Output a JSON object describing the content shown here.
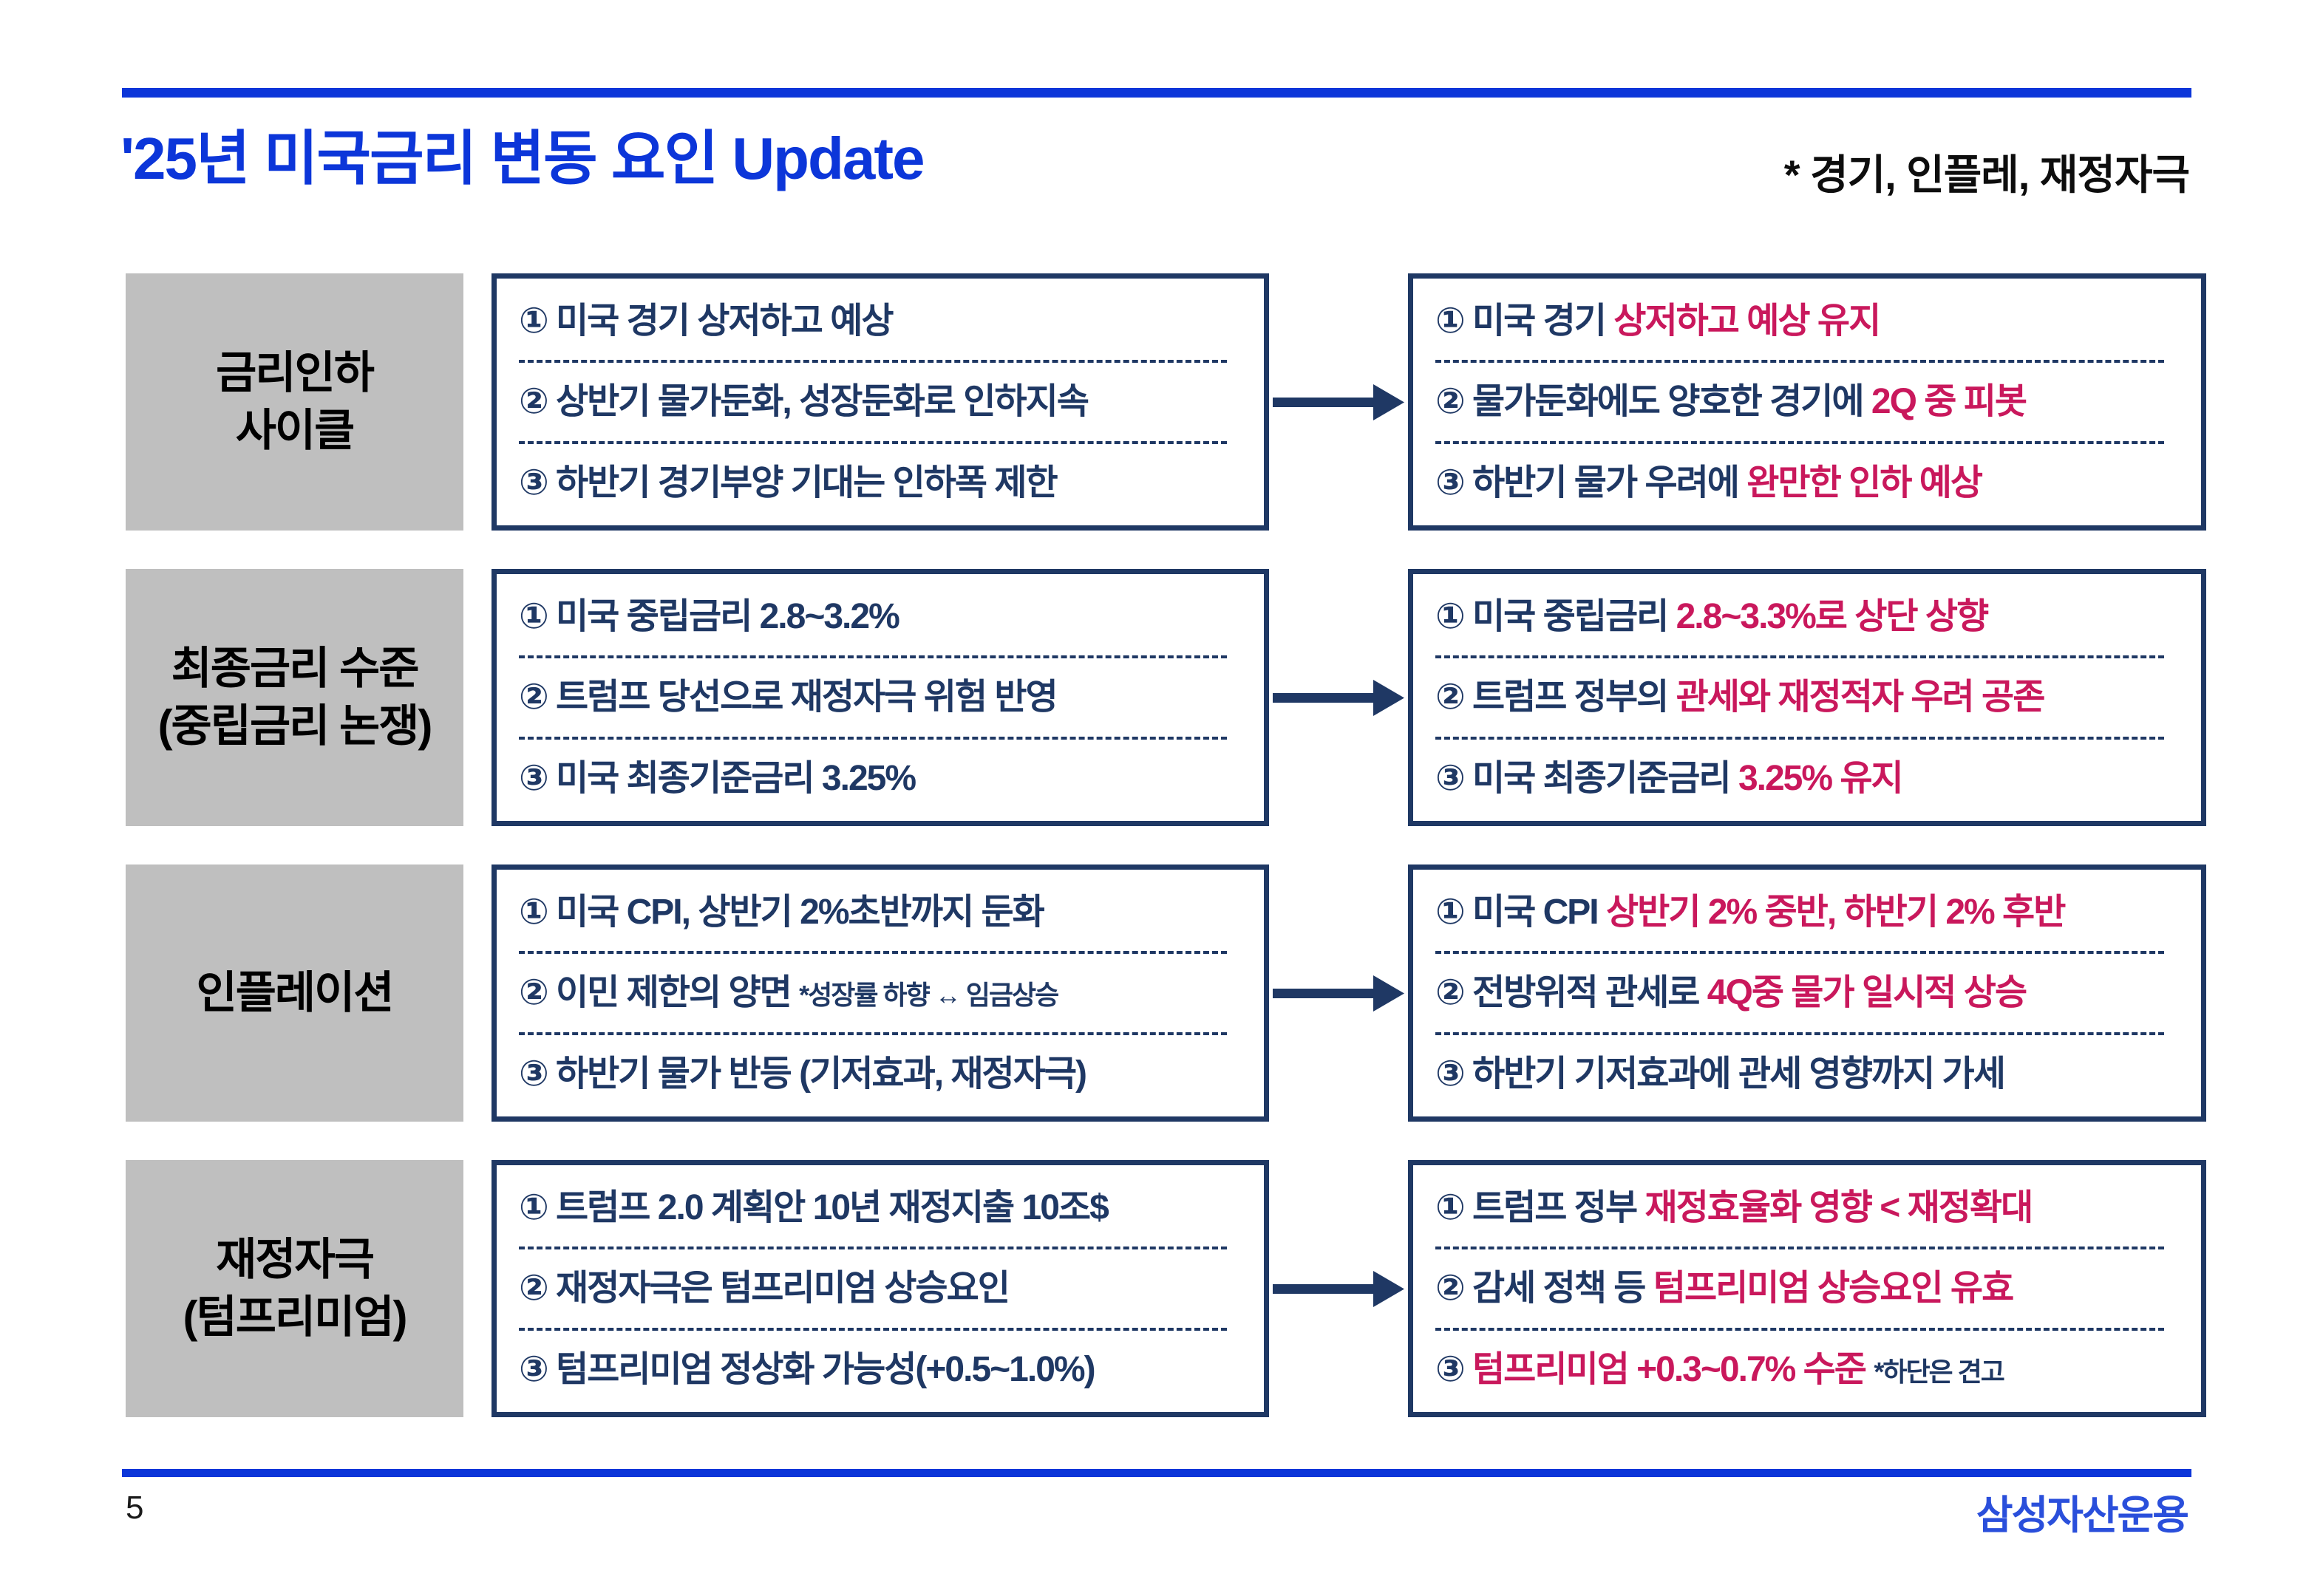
{
  "header": {
    "title": "'25년 미국금리 변동 요인 Update",
    "note": "* 경기, 인플레, 재정자극"
  },
  "colors": {
    "accent_blue": "#0C36D9",
    "navy": "#1F3864",
    "highlight_red": "#C9185C",
    "label_gray": "#BFBFBF",
    "logo_blue": "#2A4FDB"
  },
  "footer": {
    "page_number": "5",
    "logo": "삼성자산운용"
  },
  "rows": [
    {
      "label": "금리인하\n사이클",
      "mid": {
        "items": [
          {
            "parts": [
              {
                "t": "① 미국 경기 상저하고 예상",
                "s": "n"
              }
            ]
          },
          {
            "parts": [
              {
                "t": "② 상반기 물가둔화, 성장둔화로 인하지속",
                "s": "n"
              }
            ]
          },
          {
            "parts": [
              {
                "t": "③ 하반기 경기부양 기대는 인하폭 제한",
                "s": "n"
              }
            ]
          }
        ]
      },
      "right": {
        "items": [
          {
            "parts": [
              {
                "t": "① 미국 경기 ",
                "s": "n"
              },
              {
                "t": "상저하고 예상 유지",
                "s": "r"
              }
            ]
          },
          {
            "parts": [
              {
                "t": "② 물가둔화에도 양호한 경기에 ",
                "s": "n"
              },
              {
                "t": "2Q 중 피봇",
                "s": "r"
              }
            ]
          },
          {
            "parts": [
              {
                "t": "③ 하반기 물가 우려에 ",
                "s": "n"
              },
              {
                "t": "완만한 인하 예상",
                "s": "r"
              }
            ]
          }
        ]
      }
    },
    {
      "label": "최종금리 수준\n(중립금리 논쟁)",
      "mid": {
        "items": [
          {
            "parts": [
              {
                "t": "① 미국 중립금리 2.8~3.2%",
                "s": "n"
              }
            ]
          },
          {
            "parts": [
              {
                "t": "② 트럼프 당선으로 재정자극 위험 반영",
                "s": "n"
              }
            ]
          },
          {
            "parts": [
              {
                "t": "③ 미국 최종기준금리 3.25%",
                "s": "n"
              }
            ]
          }
        ]
      },
      "right": {
        "items": [
          {
            "parts": [
              {
                "t": "① 미국 중립금리 ",
                "s": "n"
              },
              {
                "t": "2.8~3.3%로 상단 상향",
                "s": "r"
              }
            ]
          },
          {
            "parts": [
              {
                "t": "② 트럼프 정부의 ",
                "s": "n"
              },
              {
                "t": "관세와 재정적자 우려 공존",
                "s": "r"
              }
            ]
          },
          {
            "parts": [
              {
                "t": "③ 미국 최종기준금리 ",
                "s": "n"
              },
              {
                "t": "3.25% 유지",
                "s": "r"
              }
            ]
          }
        ]
      }
    },
    {
      "label": "인플레이션",
      "mid": {
        "items": [
          {
            "parts": [
              {
                "t": "① 미국 CPI, 상반기 2%초반까지 둔화",
                "s": "n"
              }
            ]
          },
          {
            "parts": [
              {
                "t": "② 이민 제한의 양면 ",
                "s": "n"
              },
              {
                "t": "*성장률 하향 ↔ 임금상승",
                "s": "ns"
              }
            ]
          },
          {
            "parts": [
              {
                "t": "③ 하반기 물가 반등 (기저효과, 재정자극)",
                "s": "n"
              }
            ]
          }
        ]
      },
      "right": {
        "items": [
          {
            "parts": [
              {
                "t": "① 미국 CPI ",
                "s": "n"
              },
              {
                "t": "상반기 2% 중반, 하반기 2% 후반",
                "s": "r"
              }
            ]
          },
          {
            "parts": [
              {
                "t": "② 전방위적 관세로 ",
                "s": "n"
              },
              {
                "t": "4Q중 물가 일시적 상승",
                "s": "r"
              }
            ]
          },
          {
            "parts": [
              {
                "t": "③ 하반기 기저효과에 관세 영향까지 가세",
                "s": "n"
              }
            ]
          }
        ]
      }
    },
    {
      "label": "재정자극\n(텀프리미엄)",
      "mid": {
        "items": [
          {
            "parts": [
              {
                "t": "① 트럼프 2.0 계획안 10년 재정지출 10조$",
                "s": "n"
              }
            ]
          },
          {
            "parts": [
              {
                "t": "② 재정자극은 텀프리미엄 상승요인",
                "s": "n"
              }
            ]
          },
          {
            "parts": [
              {
                "t": "③ 텀프리미엄 정상화 가능성(+0.5~1.0%)",
                "s": "n"
              }
            ]
          }
        ]
      },
      "right": {
        "items": [
          {
            "parts": [
              {
                "t": "① 트럼프 정부 ",
                "s": "n"
              },
              {
                "t": "재정효율화 영향 < 재정확대",
                "s": "r"
              }
            ]
          },
          {
            "parts": [
              {
                "t": "② 감세 정책 등 ",
                "s": "n"
              },
              {
                "t": "텀프리미엄 상승요인 유효",
                "s": "r"
              }
            ]
          },
          {
            "parts": [
              {
                "t": "③ ",
                "s": "n"
              },
              {
                "t": "텀프리미엄 +0.3~0.7% 수준 ",
                "s": "r"
              },
              {
                "t": "*하단은 견고",
                "s": "ns"
              }
            ]
          }
        ]
      }
    }
  ]
}
